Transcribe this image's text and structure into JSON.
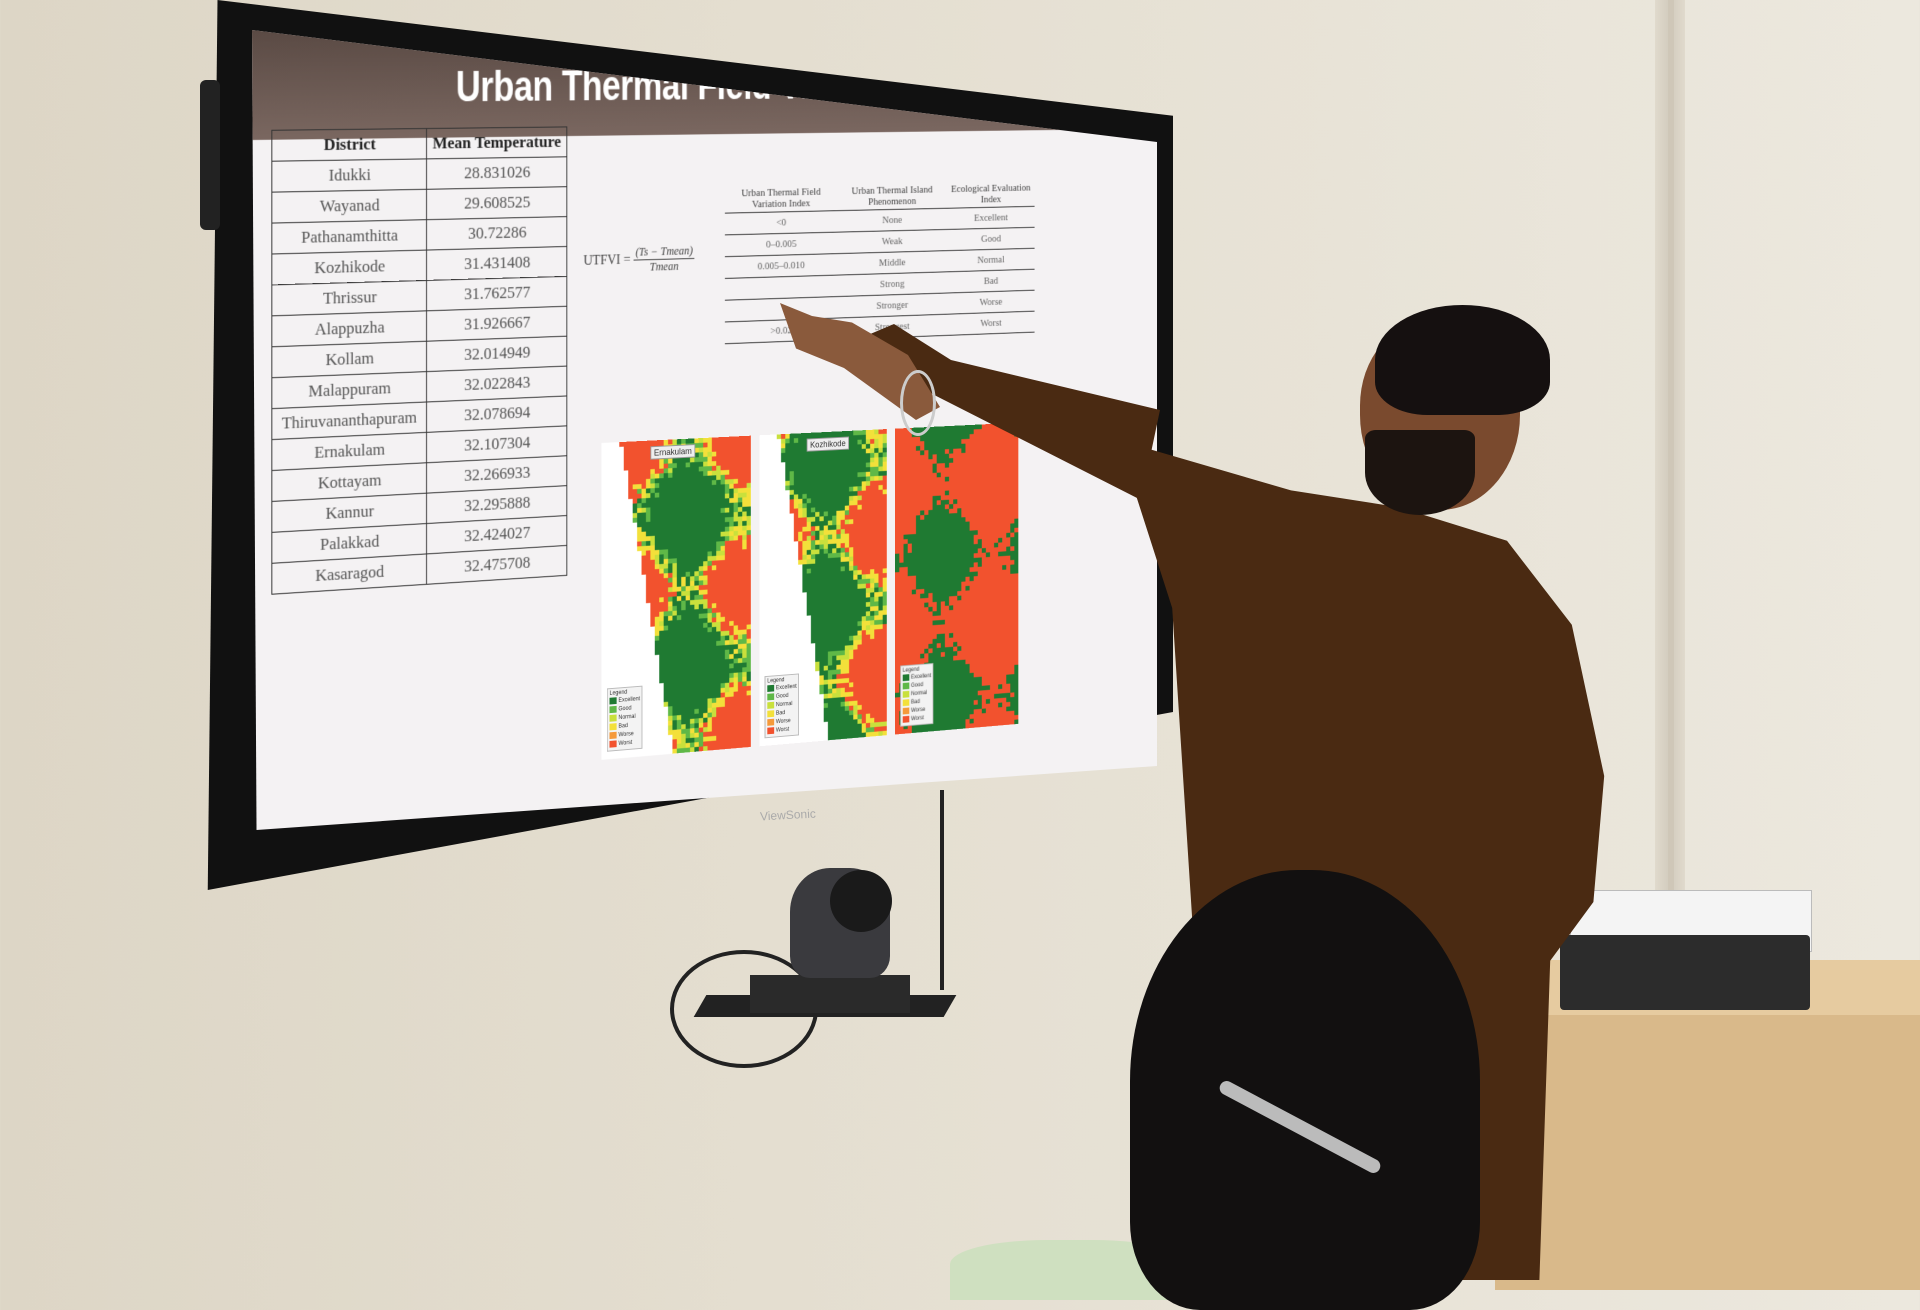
{
  "slide": {
    "title": "Urban Thermal Field Variation Index",
    "district_table": {
      "headers": [
        "District",
        "Mean Temperature"
      ],
      "rows": [
        [
          "Idukki",
          "28.831026"
        ],
        [
          "Wayanad",
          "29.608525"
        ],
        [
          "Pathanamthitta",
          "30.72286"
        ],
        [
          "Kozhikode",
          "31.431408"
        ],
        [
          "Thrissur",
          "31.762577"
        ],
        [
          "Alappuzha",
          "31.926667"
        ],
        [
          "Kollam",
          "32.014949"
        ],
        [
          "Malappuram",
          "32.022843"
        ],
        [
          "Thiruvananthapuram",
          "32.078694"
        ],
        [
          "Ernakulam",
          "32.107304"
        ],
        [
          "Kottayam",
          "32.266933"
        ],
        [
          "Kannur",
          "32.295888"
        ],
        [
          "Palakkad",
          "32.424027"
        ],
        [
          "Kasaragod",
          "32.475708"
        ]
      ]
    },
    "formula": {
      "lhs": "UTFVI =",
      "numerator": "(Ts − Tmean)",
      "denominator": "Tmean"
    },
    "utfvi_table": {
      "headers": [
        "Urban Thermal Field Variation Index",
        "Urban Thermal Island Phenomenon",
        "Ecological Evaluation Index"
      ],
      "rows": [
        [
          "<0",
          "None",
          "Excellent"
        ],
        [
          "0–0.005",
          "Weak",
          "Good"
        ],
        [
          "0.005–0.010",
          "Middle",
          "Normal"
        ],
        [
          "",
          "Strong",
          "Bad"
        ],
        [
          "",
          "Stronger",
          "Worse"
        ],
        [
          ">0.02",
          "Strongest",
          "Worst"
        ]
      ]
    },
    "maps": [
      {
        "label": "Ernakulam"
      },
      {
        "label": "Kozhikode"
      },
      {
        "label": ""
      }
    ],
    "legend": {
      "title": "Legend",
      "items": [
        {
          "label": "Excellent",
          "color": "#1f7a32"
        },
        {
          "label": "Good",
          "color": "#5fb847"
        },
        {
          "label": "Normal",
          "color": "#c9e03c"
        },
        {
          "label": "Bad",
          "color": "#f3e03a"
        },
        {
          "label": "Worse",
          "color": "#f59a3a"
        },
        {
          "label": "Worst",
          "color": "#f2522e"
        }
      ]
    }
  },
  "monitor": {
    "brand": "ViewSonic"
  },
  "colors": {
    "shirt": "#4a2a12",
    "wall": "#e4ded0",
    "map_green": "#2f7d36",
    "map_red": "#f2522e"
  }
}
